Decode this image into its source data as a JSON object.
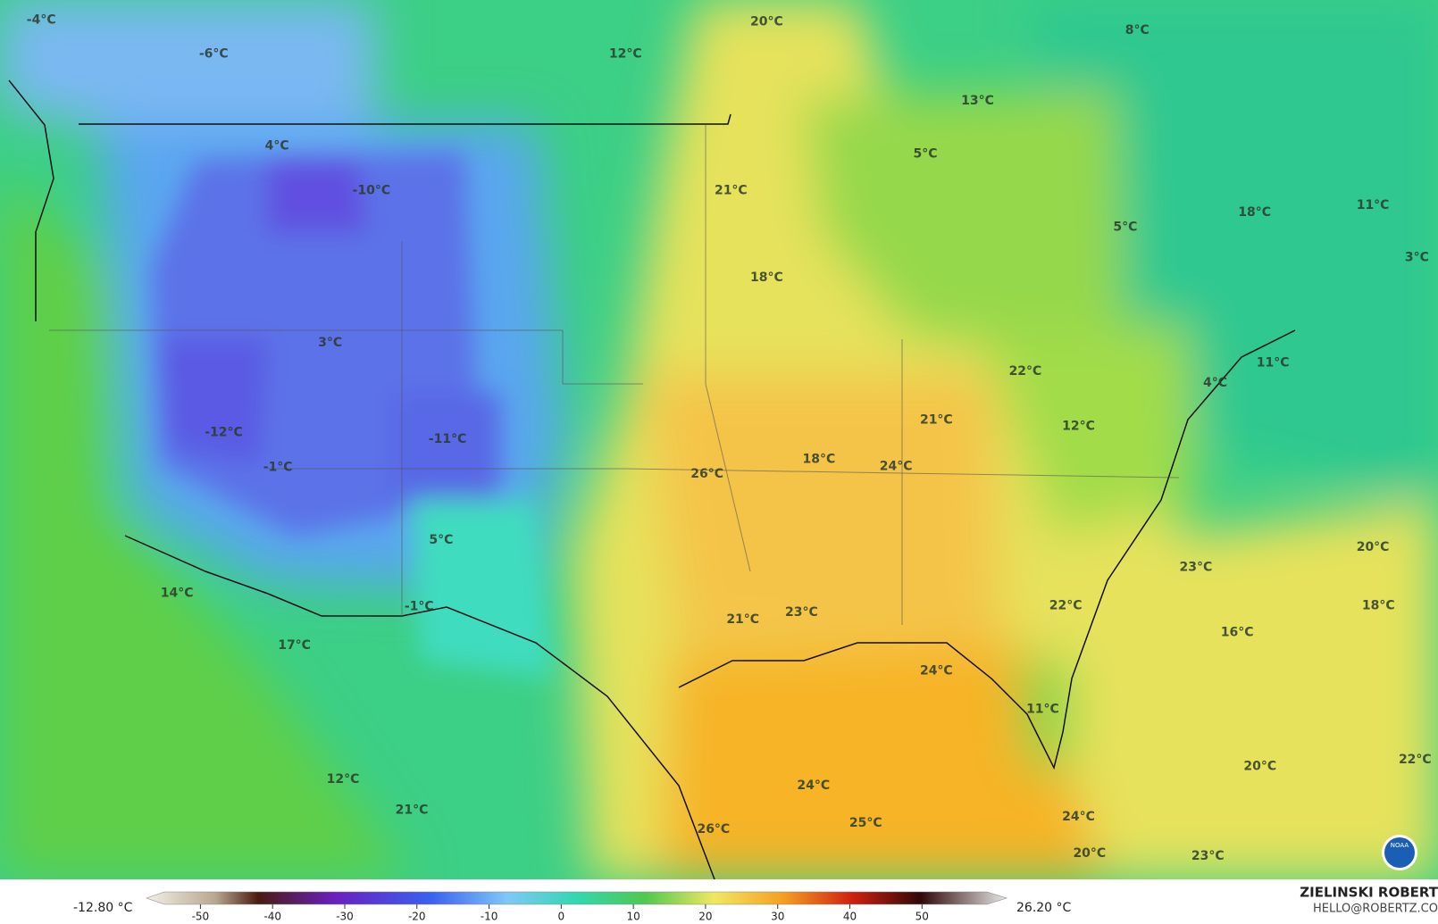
{
  "map_labels": [
    "-4°C",
    "-6°C",
    "12°C",
    "20°C",
    "8°C",
    "13°C",
    "4°C",
    "-10°C",
    "21°C",
    "5°C",
    "18°C",
    "5°C",
    "11°C",
    "3°C",
    "18°C",
    "3°C",
    "22°C",
    "11°C",
    "4°C",
    "21°C",
    "12°C",
    "-12°C",
    "-11°C",
    "-1°C",
    "18°C",
    "24°C",
    "26°C",
    "5°C",
    "20°C",
    "23°C",
    "14°C",
    "-1°C",
    "22°C",
    "18°C",
    "23°C",
    "21°C",
    "16°C",
    "17°C",
    "24°C",
    "11°C",
    "22°C",
    "20°C",
    "24°C",
    "12°C",
    "21°C",
    "24°C",
    "25°C",
    "26°C",
    "20°C",
    "23°C"
  ],
  "colorbar": {
    "min_label": "-12.80 °C",
    "max_label": "26.20 °C",
    "lim": [
      -55,
      59
    ],
    "ticks": [
      -50,
      -40,
      -30,
      -20,
      -10,
      0,
      10,
      20,
      30,
      40,
      50
    ]
  },
  "branding": {
    "name": "ZIELINSKI ROBERT",
    "contact": "HELLO@ROBERTZ.CO"
  },
  "logo": {
    "text": "NOAA"
  }
}
